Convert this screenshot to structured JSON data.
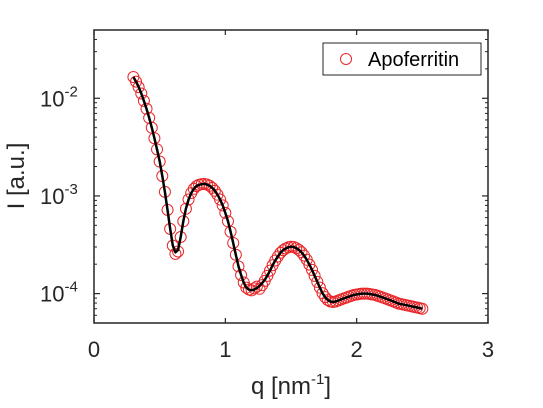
{
  "chart_data": {
    "type": "scatter",
    "xlabel": "q [nm",
    "xlabel_sup": "-1",
    "xlabel_end": "]",
    "ylabel": "I [a.u.]",
    "xlim": [
      0,
      3
    ],
    "ylim": [
      5e-05,
      0.05
    ],
    "yscale": "log",
    "xticks": [
      0,
      1,
      2,
      3
    ],
    "xtick_labels": [
      "0",
      "1",
      "2",
      "3"
    ],
    "yticks": [
      0.0001,
      0.001,
      0.01
    ],
    "ytick_labels": [
      {
        "base": "10",
        "exp": "-4"
      },
      {
        "base": "10",
        "exp": "-3"
      },
      {
        "base": "10",
        "exp": "-2"
      }
    ],
    "grid": false,
    "legend": {
      "position": "top-right",
      "entries": [
        "Apoferritin"
      ]
    },
    "series": [
      {
        "name": "Apoferritin",
        "style": "markers",
        "marker": "open-circle",
        "color": "#e8272a",
        "x": [
          0.3,
          0.32,
          0.34,
          0.36,
          0.38,
          0.4,
          0.42,
          0.44,
          0.46,
          0.48,
          0.5,
          0.52,
          0.54,
          0.56,
          0.58,
          0.6,
          0.62,
          0.64,
          0.66,
          0.68,
          0.7,
          0.72,
          0.74,
          0.76,
          0.78,
          0.8,
          0.82,
          0.84,
          0.86,
          0.88,
          0.9,
          0.92,
          0.94,
          0.96,
          0.98,
          1.0,
          1.02,
          1.04,
          1.06,
          1.08,
          1.1,
          1.12,
          1.14,
          1.16,
          1.18,
          1.2,
          1.22,
          1.24,
          1.26,
          1.28,
          1.3,
          1.32,
          1.34,
          1.36,
          1.38,
          1.4,
          1.42,
          1.44,
          1.46,
          1.48,
          1.5,
          1.52,
          1.54,
          1.56,
          1.58,
          1.6,
          1.62,
          1.64,
          1.66,
          1.68,
          1.7,
          1.72,
          1.74,
          1.76,
          1.78,
          1.8,
          1.82,
          1.84,
          1.86,
          1.88,
          1.9,
          1.92,
          1.94,
          1.96,
          1.98,
          2.0,
          2.02,
          2.04,
          2.06,
          2.08,
          2.1,
          2.12,
          2.14,
          2.16,
          2.18,
          2.2,
          2.22,
          2.24,
          2.26,
          2.28,
          2.3,
          2.32,
          2.34,
          2.36,
          2.38,
          2.4,
          2.42,
          2.44,
          2.46,
          2.48,
          2.5
        ],
        "y": [
          0.0165,
          0.0148,
          0.013,
          0.0112,
          0.0094,
          0.0078,
          0.0063,
          0.005,
          0.0039,
          0.003,
          0.00225,
          0.0016,
          0.0011,
          0.00072,
          0.00046,
          0.00031,
          0.000255,
          0.00027,
          0.00038,
          0.00055,
          0.00074,
          0.00092,
          0.00107,
          0.00118,
          0.00126,
          0.0013,
          0.00132,
          0.00133,
          0.00131,
          0.00127,
          0.00121,
          0.00113,
          0.00103,
          0.00092,
          0.0008,
          0.00067,
          0.00055,
          0.00043,
          0.00033,
          0.00025,
          0.00019,
          0.000155,
          0.00013,
          0.000115,
          0.00011,
          0.000108,
          0.000113,
          0.000118,
          0.000112,
          0.000122,
          0.000135,
          0.000152,
          0.000172,
          0.000195,
          0.000218,
          0.00024,
          0.000262,
          0.000278,
          0.00029,
          0.000298,
          0.000302,
          0.0003,
          0.000292,
          0.00028,
          0.000265,
          0.000245,
          0.000222,
          0.000198,
          0.000175,
          0.000152,
          0.000132,
          0.000115,
          0.000101,
          9.2e-05,
          8.6e-05,
          8.3e-05,
          8.2e-05,
          8.3e-05,
          8.5e-05,
          8.7e-05,
          8.9e-05,
          9.1e-05,
          9.3e-05,
          9.5e-05,
          9.7e-05,
          9.8e-05,
          9.9e-05,
          0.0001,
          0.0001,
          0.0001,
          9.9e-05,
          9.8e-05,
          9.7e-05,
          9.5e-05,
          9.3e-05,
          9.1e-05,
          8.9e-05,
          8.7e-05,
          8.5e-05,
          8.3e-05,
          8.1e-05,
          7.9e-05,
          7.8e-05,
          7.7e-05,
          7.6e-05,
          7.5e-05,
          7.4e-05,
          7.3e-05,
          7.2e-05,
          7.1e-05,
          7e-05
        ]
      },
      {
        "style": "line",
        "color": "#000000",
        "x": [
          0.3,
          0.32,
          0.34,
          0.36,
          0.38,
          0.4,
          0.42,
          0.44,
          0.46,
          0.48,
          0.5,
          0.52,
          0.54,
          0.56,
          0.58,
          0.6,
          0.62,
          0.64,
          0.66,
          0.68,
          0.7,
          0.72,
          0.74,
          0.76,
          0.78,
          0.8,
          0.82,
          0.84,
          0.86,
          0.88,
          0.9,
          0.92,
          0.94,
          0.96,
          0.98,
          1.0,
          1.02,
          1.04,
          1.06,
          1.08,
          1.1,
          1.12,
          1.14,
          1.16,
          1.18,
          1.2,
          1.22,
          1.24,
          1.26,
          1.28,
          1.3,
          1.32,
          1.34,
          1.36,
          1.38,
          1.4,
          1.42,
          1.44,
          1.46,
          1.48,
          1.5,
          1.52,
          1.54,
          1.56,
          1.58,
          1.6,
          1.62,
          1.64,
          1.66,
          1.68,
          1.7,
          1.72,
          1.74,
          1.76,
          1.78,
          1.8,
          1.82,
          1.84,
          1.86,
          1.88,
          1.9,
          1.92,
          1.94,
          1.96,
          1.98,
          2.0,
          2.02,
          2.04,
          2.06,
          2.08,
          2.1,
          2.12,
          2.14,
          2.16,
          2.18,
          2.2,
          2.22,
          2.24,
          2.26,
          2.28,
          2.3,
          2.32,
          2.34,
          2.36,
          2.38,
          2.4,
          2.42,
          2.44,
          2.46,
          2.48,
          2.5
        ],
        "y": [
          0.0165,
          0.0148,
          0.013,
          0.0112,
          0.0094,
          0.0078,
          0.0063,
          0.005,
          0.0039,
          0.003,
          0.00225,
          0.0016,
          0.0011,
          0.00072,
          0.00046,
          0.00031,
          0.000265,
          0.00028,
          0.00038,
          0.00055,
          0.00074,
          0.00092,
          0.00107,
          0.00118,
          0.00126,
          0.0013,
          0.00132,
          0.00133,
          0.00131,
          0.00127,
          0.00121,
          0.00113,
          0.00103,
          0.00092,
          0.0008,
          0.00067,
          0.00055,
          0.00043,
          0.00033,
          0.00025,
          0.00019,
          0.000155,
          0.00013,
          0.000115,
          0.00011,
          0.000108,
          0.00011,
          0.000114,
          0.00012,
          0.000128,
          0.000138,
          0.000153,
          0.000172,
          0.000195,
          0.000218,
          0.00024,
          0.000262,
          0.000278,
          0.00029,
          0.000298,
          0.000302,
          0.0003,
          0.000292,
          0.00028,
          0.000265,
          0.000245,
          0.000222,
          0.000198,
          0.000175,
          0.000152,
          0.000132,
          0.000115,
          0.000101,
          9.2e-05,
          8.6e-05,
          8.3e-05,
          8.2e-05,
          8.3e-05,
          8.5e-05,
          8.7e-05,
          8.9e-05,
          9.1e-05,
          9.3e-05,
          9.5e-05,
          9.7e-05,
          9.8e-05,
          9.9e-05,
          0.0001,
          0.0001,
          0.0001,
          9.9e-05,
          9.8e-05,
          9.7e-05,
          9.5e-05,
          9.3e-05,
          9.1e-05,
          8.9e-05,
          8.7e-05,
          8.5e-05,
          8.3e-05,
          8.1e-05,
          7.9e-05,
          7.8e-05,
          7.7e-05,
          7.6e-05,
          7.5e-05,
          7.4e-05,
          7.3e-05,
          7.2e-05,
          7.1e-05,
          7e-05
        ]
      }
    ]
  }
}
